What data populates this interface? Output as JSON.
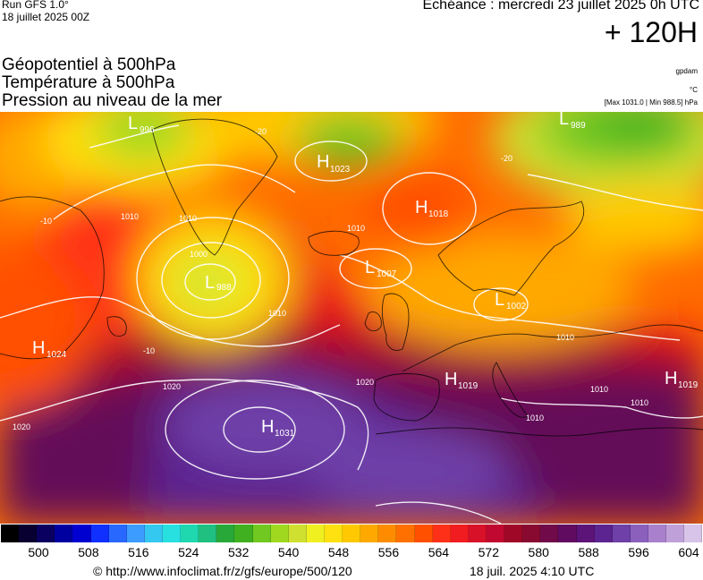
{
  "header": {
    "run": "Run GFS 1.0°",
    "run_date": "18 juillet 2025 00Z",
    "valid": "Echéance : mercredi 23 juillet 2025 0h UTC",
    "lead": "+ 120H"
  },
  "parameters": [
    {
      "label": "Géopotentiel à 500hPa",
      "unit": "gpdam"
    },
    {
      "label": "Température à 500hPa",
      "unit": "°C"
    },
    {
      "label": "Pression au niveau de la mer",
      "unit": "[Max 1031.0 | Min 988.5] hPa"
    }
  ],
  "pressure_centers": [
    {
      "type": "L",
      "value": "996"
    },
    {
      "type": "H",
      "value": "1023"
    },
    {
      "type": "L",
      "value": "989"
    },
    {
      "type": "H",
      "value": "1018"
    },
    {
      "type": "L",
      "value": "988"
    },
    {
      "type": "L",
      "value": "1007"
    },
    {
      "type": "L",
      "value": "1002"
    },
    {
      "type": "H",
      "value": "1024"
    },
    {
      "type": "H",
      "value": "1019"
    },
    {
      "type": "H",
      "value": "1019"
    },
    {
      "type": "H",
      "value": "1031"
    }
  ],
  "isobar_labels": [
    "1010",
    "1010",
    "1000",
    "1010",
    "1010",
    "1020",
    "1020",
    "1020",
    "1010",
    "1010",
    "1010",
    "1010"
  ],
  "scale": {
    "labels": [
      "500",
      "508",
      "516",
      "524",
      "532",
      "540",
      "548",
      "556",
      "564",
      "572",
      "580",
      "588",
      "596",
      "604"
    ],
    "colors": [
      "#000000",
      "#070030",
      "#0a0060",
      "#0000a0",
      "#0000d0",
      "#1030ff",
      "#2868ff",
      "#3c9cff",
      "#34c8f0",
      "#28e0e0",
      "#20d8b0",
      "#20c080",
      "#28a838",
      "#40b020",
      "#70c820",
      "#a0d820",
      "#d0e030",
      "#f0f020",
      "#ffe010",
      "#ffc800",
      "#ffa800",
      "#ff8c00",
      "#ff7000",
      "#ff5000",
      "#ff3018",
      "#f01c20",
      "#d81028",
      "#c00830",
      "#a00828",
      "#880a30",
      "#700a48",
      "#600a60",
      "#5c1478",
      "#5c2490",
      "#6e40a8",
      "#8a60bc",
      "#a880cc",
      "#c0a0d8",
      "#d8c4e8"
    ]
  },
  "footer": {
    "url": "© http://www.infoclimat.fr/z/gfs/europe/500/120",
    "date": "18 juil. 2025  4:10 UTC"
  }
}
